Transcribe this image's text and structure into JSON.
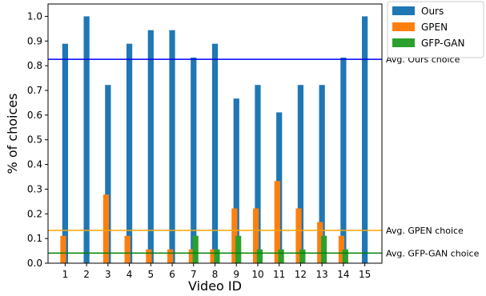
{
  "chart_data": {
    "type": "bar",
    "title": "",
    "xlabel": "Video ID",
    "ylabel": "% of choices",
    "ylim": [
      0,
      1.05
    ],
    "yticks": [
      "0.0",
      "0.1",
      "0.2",
      "0.3",
      "0.4",
      "0.5",
      "0.6",
      "0.7",
      "0.8",
      "0.9",
      "1.0"
    ],
    "categories": [
      "1",
      "2",
      "3",
      "4",
      "5",
      "6",
      "7",
      "8",
      "9",
      "10",
      "11",
      "12",
      "13",
      "14",
      "15"
    ],
    "legend_position": "outside upper right",
    "grid": false,
    "series": [
      {
        "name": "Ours",
        "color": "#1f77b4",
        "values": [
          0.889,
          1.0,
          0.722,
          0.889,
          0.944,
          0.944,
          0.833,
          0.889,
          0.667,
          0.722,
          0.611,
          0.722,
          0.722,
          0.833,
          1.0
        ]
      },
      {
        "name": "GPEN",
        "color": "#ff7f0e",
        "values": [
          0.111,
          0.0,
          0.278,
          0.111,
          0.056,
          0.056,
          0.056,
          0.056,
          0.222,
          0.222,
          0.333,
          0.222,
          0.167,
          0.111,
          0.0
        ]
      },
      {
        "name": "GFP-GAN",
        "color": "#2ca02c",
        "values": [
          0.0,
          0.0,
          0.0,
          0.0,
          0.0,
          0.0,
          0.111,
          0.056,
          0.111,
          0.056,
          0.056,
          0.056,
          0.111,
          0.056,
          0.0
        ]
      }
    ],
    "reference_lines": [
      {
        "label": "Avg. Ours choice",
        "value": 0.826,
        "color": "#0000ff"
      },
      {
        "label": "Avg. GPEN choice",
        "value": 0.133,
        "color": "#ffa500"
      },
      {
        "label": "Avg. GFP-GAN choice",
        "value": 0.041,
        "color": "#008000"
      }
    ]
  }
}
